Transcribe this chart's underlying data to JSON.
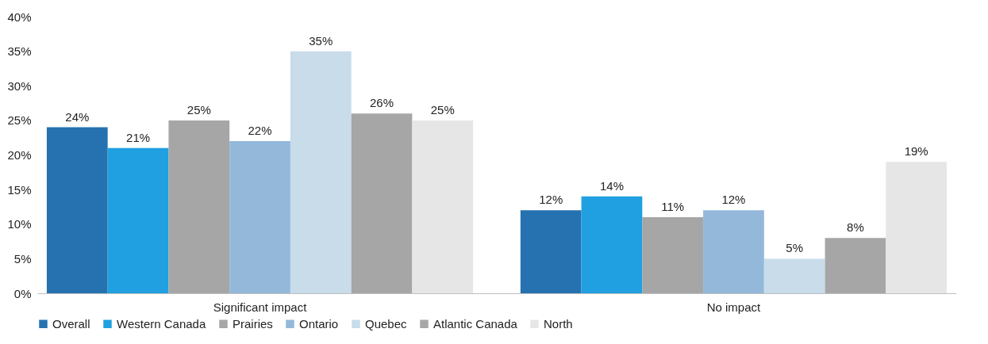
{
  "chart_data": {
    "type": "bar",
    "categories": [
      "Significant impact",
      "No impact"
    ],
    "series": [
      {
        "name": "Overall",
        "color": "#2672b0",
        "values": [
          24,
          12
        ],
        "value_labels": [
          "24%",
          "12%"
        ]
      },
      {
        "name": "Western Canada",
        "color": "#20a0e0",
        "values": [
          21,
          14
        ],
        "value_labels": [
          "21%",
          "14%"
        ]
      },
      {
        "name": "Prairies",
        "color": "#a6a6a6",
        "values": [
          25,
          11
        ],
        "value_labels": [
          "25%",
          "11%"
        ]
      },
      {
        "name": "Ontario",
        "color": "#93b8da",
        "values": [
          22,
          12
        ],
        "value_labels": [
          "22%",
          "12%"
        ]
      },
      {
        "name": "Quebec",
        "color": "#c8dcea",
        "values": [
          35,
          5
        ],
        "value_labels": [
          "35%",
          "5%"
        ]
      },
      {
        "name": "Atlantic Canada",
        "color": "#a6a6a6",
        "values": [
          26,
          8
        ],
        "value_labels": [
          "26%",
          "8%"
        ]
      },
      {
        "name": "North",
        "color": "#e6e6e6",
        "values": [
          25,
          19
        ],
        "value_labels": [
          "25%",
          "19%"
        ]
      }
    ],
    "ylim": [
      0,
      40
    ],
    "yticks": [
      {
        "value": 0,
        "label": "0%"
      },
      {
        "value": 5,
        "label": "5%"
      },
      {
        "value": 10,
        "label": "10%"
      },
      {
        "value": 15,
        "label": "15%"
      },
      {
        "value": 20,
        "label": "20%"
      },
      {
        "value": 25,
        "label": "25%"
      },
      {
        "value": 30,
        "label": "30%"
      },
      {
        "value": 35,
        "label": "35%"
      },
      {
        "value": 40,
        "label": "40%"
      }
    ],
    "grid": false,
    "legend": "bottom"
  }
}
